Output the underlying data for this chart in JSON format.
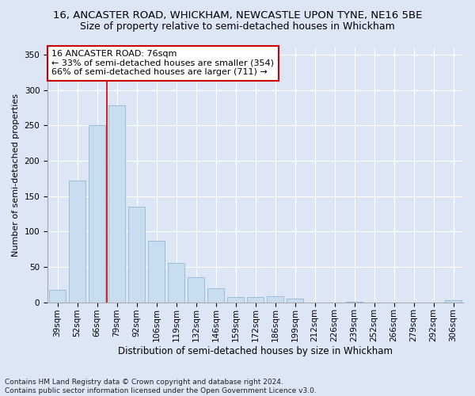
{
  "title1": "16, ANCASTER ROAD, WHICKHAM, NEWCASTLE UPON TYNE, NE16 5BE",
  "title2": "Size of property relative to semi-detached houses in Whickham",
  "xlabel": "Distribution of semi-detached houses by size in Whickham",
  "ylabel": "Number of semi-detached properties",
  "categories": [
    "39sqm",
    "52sqm",
    "66sqm",
    "79sqm",
    "92sqm",
    "106sqm",
    "119sqm",
    "132sqm",
    "146sqm",
    "159sqm",
    "172sqm",
    "186sqm",
    "199sqm",
    "212sqm",
    "226sqm",
    "239sqm",
    "252sqm",
    "266sqm",
    "279sqm",
    "292sqm",
    "306sqm"
  ],
  "values": [
    18,
    172,
    250,
    278,
    135,
    87,
    56,
    35,
    20,
    8,
    8,
    9,
    5,
    0,
    0,
    1,
    0,
    0,
    0,
    0,
    3
  ],
  "bar_color": "#c9ddf0",
  "bar_edge_color": "#9bbdd8",
  "vline_x": 2.5,
  "vline_color": "#cc0000",
  "annotation_text": "16 ANCASTER ROAD: 76sqm\n← 33% of semi-detached houses are smaller (354)\n66% of semi-detached houses are larger (711) →",
  "annotation_box_color": "#ffffff",
  "annotation_box_edge_color": "#cc0000",
  "ylim": [
    0,
    360
  ],
  "yticks": [
    0,
    50,
    100,
    150,
    200,
    250,
    300,
    350
  ],
  "fig_background_color": "#dce6f5",
  "plot_background_color": "#dce6f5",
  "footnote": "Contains HM Land Registry data © Crown copyright and database right 2024.\nContains public sector information licensed under the Open Government Licence v3.0.",
  "title1_fontsize": 9.5,
  "title2_fontsize": 9,
  "xlabel_fontsize": 8.5,
  "ylabel_fontsize": 8,
  "tick_fontsize": 7.5,
  "annotation_fontsize": 8,
  "footnote_fontsize": 6.5
}
